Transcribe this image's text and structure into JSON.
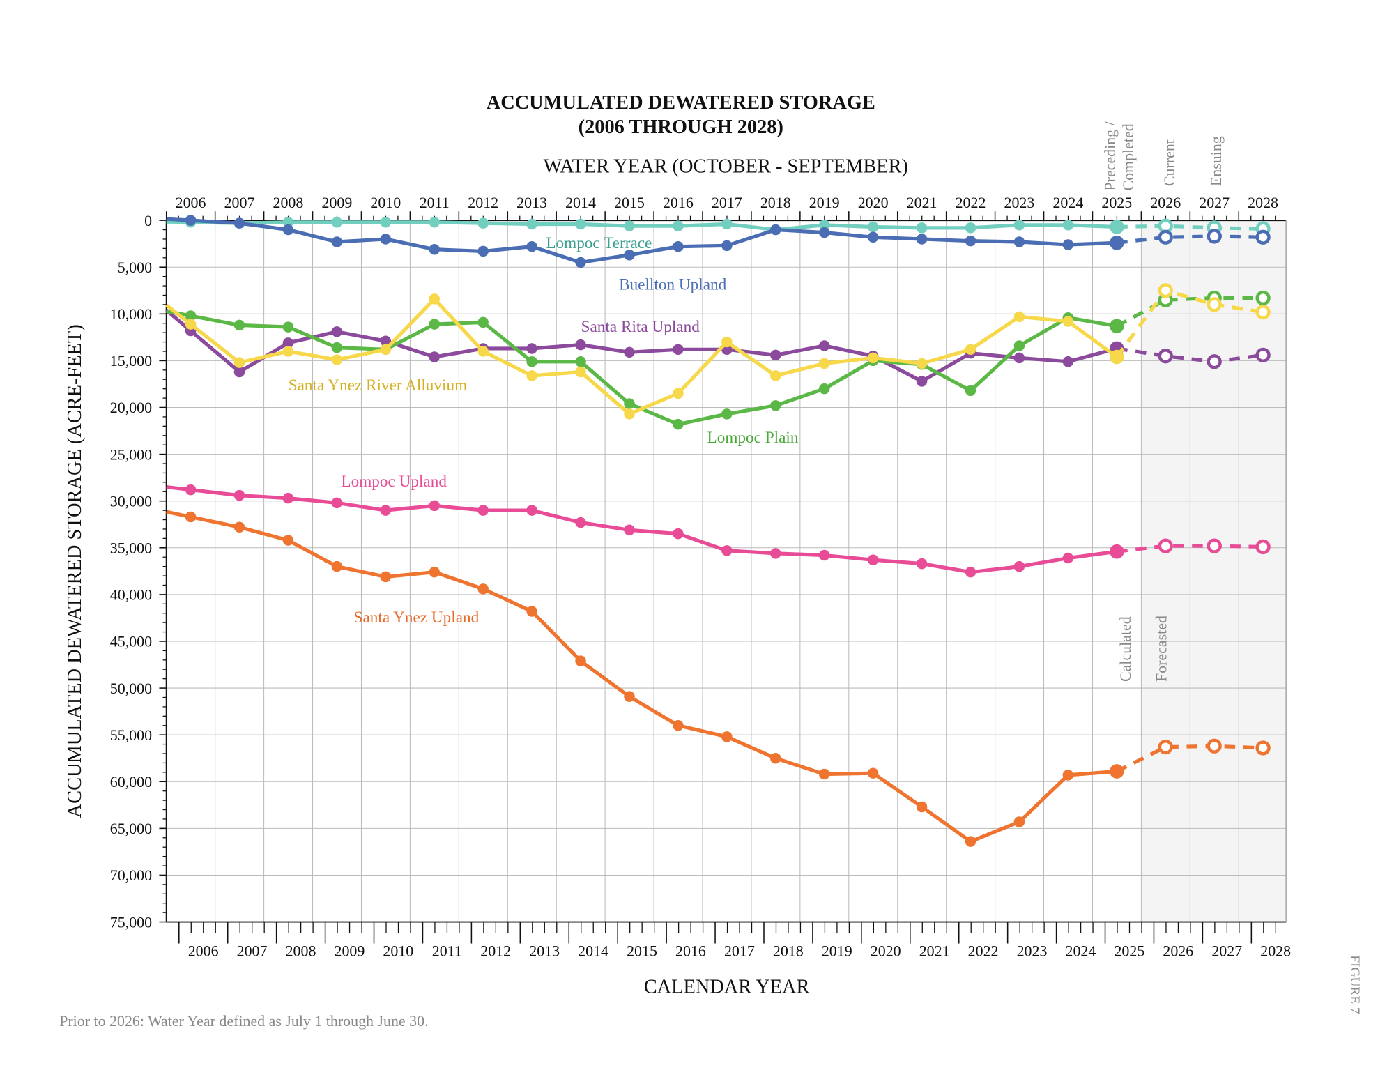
{
  "chart_data": {
    "type": "line",
    "title": "ACCUMULATED DEWATERED STORAGE",
    "subtitle": "(2006 THROUGH 2028)",
    "top_axis_label": "WATER YEAR (OCTOBER - SEPTEMBER)",
    "xlabel": "CALENDAR YEAR",
    "ylabel": "ACCUMULATED DEWATERED STORAGE (ACRE-FEET)",
    "ylim": [
      0,
      75000
    ],
    "y_inverted": true,
    "y_ticks": [
      "0",
      "5,000",
      "10,000",
      "15,000",
      "20,000",
      "25,000",
      "30,000",
      "35,000",
      "40,000",
      "45,000",
      "50,000",
      "55,000",
      "60,000",
      "65,000",
      "70,000",
      "75,000"
    ],
    "grid": true,
    "water_years": [
      "2006",
      "2007",
      "2008",
      "2009",
      "2010",
      "2011",
      "2012",
      "2013",
      "2014",
      "2015",
      "2016",
      "2017",
      "2018",
      "2019",
      "2020",
      "2021",
      "2022",
      "2023",
      "2024",
      "2025",
      "2026",
      "2027",
      "2028"
    ],
    "calendar_years": [
      "2006",
      "2007",
      "2008",
      "2009",
      "2010",
      "2011",
      "2012",
      "2013",
      "2014",
      "2015",
      "2016",
      "2017",
      "2018",
      "2019",
      "2020",
      "2021",
      "2022",
      "2023",
      "2024",
      "2025",
      "2026",
      "2027",
      "2028"
    ],
    "period_labels": {
      "preceding": [
        "Preceding /",
        "Completed"
      ],
      "current": "Current",
      "ensuing": "Ensuing"
    },
    "region_labels": {
      "calculated": "Calculated",
      "forecasted": "Forecasted"
    },
    "forecast_years": [
      "2026",
      "2027",
      "2028"
    ],
    "series": [
      {
        "name": "Lompoc Terrace",
        "color": "#72cfc0",
        "label_color": "#3a9f8f",
        "values": [
          200,
          300,
          200,
          200,
          200,
          200,
          300,
          400,
          400,
          600,
          600,
          400,
          1000,
          500,
          700,
          800,
          800,
          500,
          500,
          700
        ],
        "forecast": [
          600,
          800,
          900
        ]
      },
      {
        "name": "Buellton Upland",
        "color": "#4a6db3",
        "label_color": "#4a6db3",
        "values": [
          0,
          300,
          1000,
          2300,
          2000,
          3100,
          3300,
          2800,
          4500,
          3700,
          2800,
          2700,
          1000,
          1300,
          1800,
          2000,
          2200,
          2300,
          2600,
          2400
        ],
        "forecast": [
          1800,
          1700,
          1800
        ]
      },
      {
        "name": "Santa Rita Upland",
        "color": "#8b4a9c",
        "label_color": "#8b4a9c",
        "values": [
          11800,
          16200,
          13100,
          11900,
          12900,
          14600,
          13700,
          13700,
          13300,
          14100,
          13800,
          13800,
          14400,
          13400,
          14500,
          17200,
          14200,
          14700,
          15100,
          13700
        ],
        "forecast": [
          14500,
          15100,
          14400
        ]
      },
      {
        "name": "Lompoc Plain",
        "color": "#5cb846",
        "label_color": "#4aa838",
        "values": [
          10200,
          11200,
          11400,
          13600,
          13800,
          11100,
          10900,
          15100,
          15100,
          19600,
          21800,
          20700,
          19800,
          18000,
          15000,
          15400,
          18200,
          13400,
          10400,
          11300
        ],
        "forecast": [
          8500,
          8300,
          8300
        ]
      },
      {
        "name": "Santa Ynez River Alluvium",
        "color": "#f6d84a",
        "label_color": "#d4b020",
        "values": [
          11100,
          15200,
          14000,
          14900,
          13800,
          8400,
          14000,
          16600,
          16200,
          20700,
          18500,
          13000,
          16600,
          15300,
          14700,
          15300,
          13800,
          10300,
          10800,
          14600
        ],
        "forecast": [
          7500,
          9000,
          9800
        ]
      },
      {
        "name": "Lompoc Upland",
        "color": "#e84c96",
        "label_color": "#e84c96",
        "values": [
          28800,
          29400,
          29700,
          30200,
          31000,
          30500,
          31000,
          31000,
          32300,
          33100,
          33500,
          35300,
          35600,
          35800,
          36300,
          36700,
          37600,
          37000,
          36100,
          35400
        ],
        "forecast": [
          34800,
          34800,
          34900
        ]
      },
      {
        "name": "Santa Ynez Upland",
        "color": "#ee7430",
        "label_color": "#e8692a",
        "values": [
          31700,
          32800,
          34200,
          37000,
          38100,
          37600,
          39400,
          41800,
          47100,
          50900,
          54000,
          55200,
          57500,
          59200,
          59100,
          62700,
          66400,
          64300,
          59300,
          58900
        ],
        "forecast": [
          56300,
          56200,
          56400
        ]
      }
    ],
    "footnote": "Prior to 2026: Water Year defined as July 1 through June 30.",
    "figure_label": "FIGURE 7"
  }
}
